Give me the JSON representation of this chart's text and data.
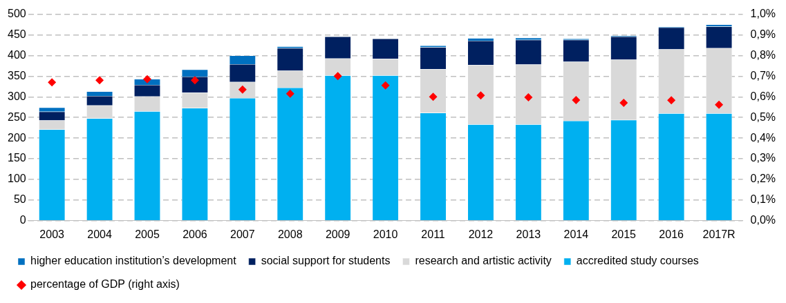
{
  "chart_data": {
    "type": "bar",
    "stacked": true,
    "categories": [
      "2003",
      "2004",
      "2005",
      "2006",
      "2007",
      "2008",
      "2009",
      "2010",
      "2011",
      "2012",
      "2013",
      "2014",
      "2015",
      "2016",
      "2017R"
    ],
    "series": [
      {
        "name": "accredited study courses",
        "color": "#00b0f0",
        "values": [
          221,
          248,
          265,
          273,
          297,
          322,
          352,
          352,
          261,
          233,
          233,
          242,
          244,
          260,
          260
        ]
      },
      {
        "name": "research and artistic activity",
        "color": "#d9d9d9",
        "values": [
          22,
          31,
          36,
          37,
          39,
          41,
          41,
          40,
          106,
          144,
          145,
          143,
          146,
          155,
          158
        ]
      },
      {
        "name": "social support for students",
        "color": "#002060",
        "values": [
          21,
          23,
          28,
          39,
          43,
          55,
          53,
          49,
          53,
          59,
          60,
          53,
          56,
          53,
          52
        ]
      },
      {
        "name": "higher education institution’s development",
        "color": "#0070c0",
        "values": [
          10,
          11,
          14,
          17,
          21,
          4,
          null,
          null,
          4,
          6,
          5,
          3,
          2,
          2,
          5
        ]
      },
      {
        "name": "percentage of GDP (right axis)",
        "type": "scatter",
        "axis": "y2",
        "marker": "diamond",
        "color": "#ff0000",
        "values": [
          0.67,
          0.68,
          0.685,
          0.68,
          0.635,
          0.615,
          0.7,
          0.655,
          0.6,
          0.607,
          0.598,
          0.584,
          0.571,
          0.583,
          0.562
        ]
      }
    ],
    "ylim": [
      0,
      500
    ],
    "yticks": [
      0,
      50,
      100,
      150,
      200,
      250,
      300,
      350,
      400,
      450,
      500
    ],
    "y2lim": [
      0,
      1
    ],
    "y2ticks": [
      {
        "value": 0,
        "label": "0,0%"
      },
      {
        "value": 0.1,
        "label": "0,1%"
      },
      {
        "value": 0.2,
        "label": "0,2%"
      },
      {
        "value": 0.3,
        "label": "0,3%"
      },
      {
        "value": 0.4,
        "label": "0,4%"
      },
      {
        "value": 0.5,
        "label": "0,5%"
      },
      {
        "value": 0.6,
        "label": "0,6%"
      },
      {
        "value": 0.7,
        "label": "0,7%"
      },
      {
        "value": 0.8,
        "label": "0,8%"
      },
      {
        "value": 0.9,
        "label": "0,9%"
      },
      {
        "value": 1,
        "label": "1,0%"
      }
    ],
    "grid": "y",
    "legend": "bottom"
  }
}
